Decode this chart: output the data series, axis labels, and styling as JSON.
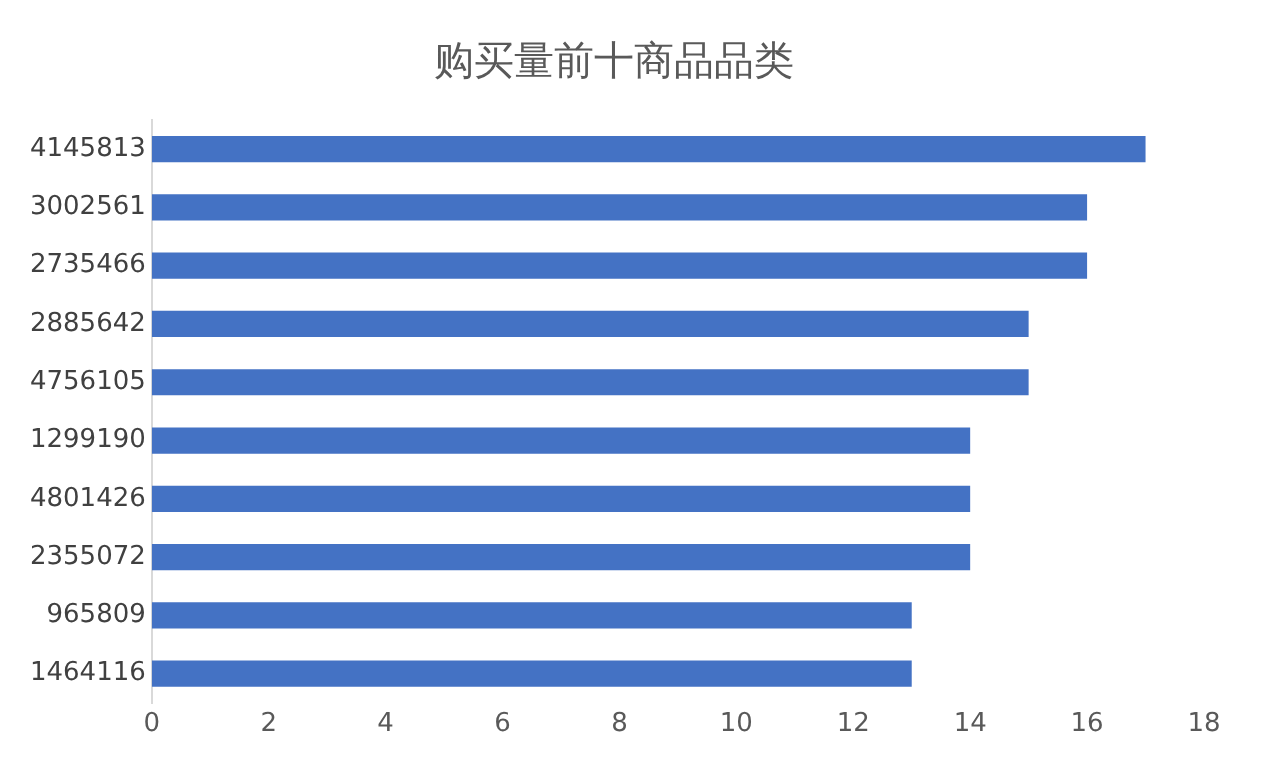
{
  "chart_data": {
    "type": "bar",
    "orientation": "horizontal",
    "title": "购买量前十商品品类",
    "categories": [
      "4145813",
      "3002561",
      "2735466",
      "2885642",
      "4756105",
      "1299190",
      "4801426",
      "2355072",
      "965809",
      "1464116"
    ],
    "values": [
      17,
      16,
      16,
      15,
      15,
      14,
      14,
      14,
      13,
      13
    ],
    "color": "#4472c4",
    "xlim": [
      0,
      18
    ],
    "xticks": [
      0,
      2,
      4,
      6,
      8,
      10,
      12,
      14,
      16,
      18
    ],
    "grid": false,
    "legend": false
  }
}
